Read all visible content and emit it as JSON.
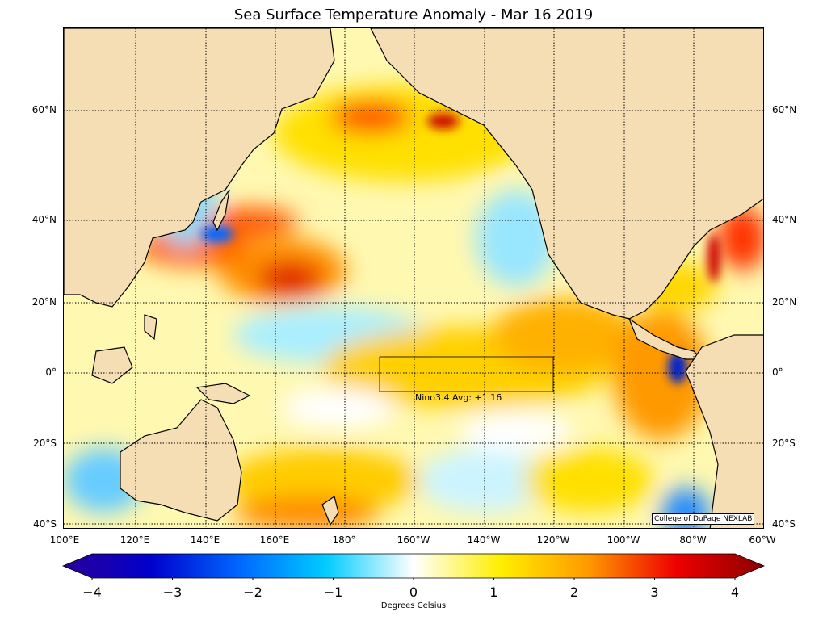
{
  "title": "Sea Surface Temperature Anomaly - Mar 16 2019",
  "latitude_labels": [
    "60°N",
    "40°N",
    "20°N",
    "0°",
    "20°S",
    "40°S"
  ],
  "longitude_labels": [
    "100°E",
    "120°E",
    "140°E",
    "160°E",
    "180°",
    "160°W",
    "140°W",
    "120°W",
    "100°W",
    "80°W",
    "60°W"
  ],
  "nino_box": {
    "label": "Nino3.4 Avg: +1.16"
  },
  "credit": "College of DuPage NEXLAB",
  "colorbar": {
    "title": "Degrees Celsius",
    "tick_labels": [
      "−4",
      "−3",
      "−2",
      "−1",
      "0",
      "1",
      "2",
      "3",
      "4"
    ],
    "range": [
      -4,
      4
    ],
    "colors": [
      "#2a0099",
      "#0000cc",
      "#0066ff",
      "#00ccff",
      "#ffffff",
      "#ffee00",
      "#ff9900",
      "#ee0000",
      "#8b0000"
    ]
  },
  "colors": {
    "land": "#f5deb3",
    "coastline": "#000000"
  }
}
